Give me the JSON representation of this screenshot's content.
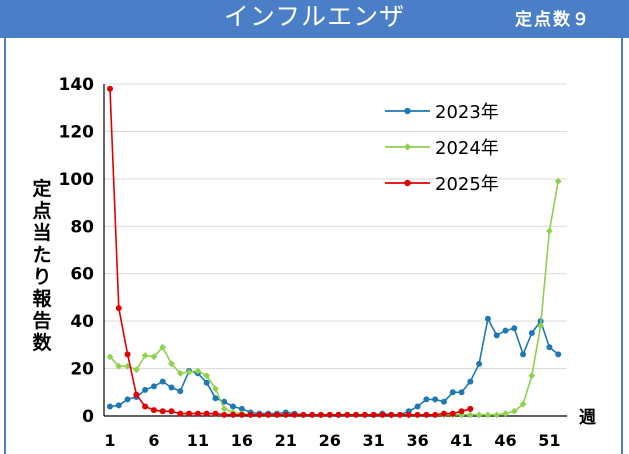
{
  "header": {
    "title": "インフルエンザ",
    "subtitle": "定点数９"
  },
  "colors": {
    "banner": "#4a7ec6",
    "series_2023": "#1f77b4",
    "series_2024": "#8fd14f",
    "series_2025": "#e00000"
  },
  "chart_data": {
    "type": "line",
    "ylabel": "定点当たり報告数",
    "xlabel": "週",
    "ylim": [
      0,
      140
    ],
    "yticks": [
      0,
      20,
      40,
      60,
      80,
      100,
      120,
      140
    ],
    "xlim": [
      1,
      53
    ],
    "xticks": [
      1,
      6,
      11,
      16,
      21,
      26,
      31,
      36,
      41,
      46,
      51
    ],
    "grid": true,
    "legend_position": "top-right",
    "series": [
      {
        "name": "2023年",
        "color": "#1f77b4",
        "marker": "circle",
        "x": [
          1,
          2,
          3,
          4,
          5,
          6,
          7,
          8,
          9,
          10,
          11,
          12,
          13,
          14,
          15,
          16,
          17,
          18,
          19,
          20,
          21,
          22,
          23,
          24,
          25,
          26,
          27,
          28,
          29,
          30,
          31,
          32,
          33,
          34,
          35,
          36,
          37,
          38,
          39,
          40,
          41,
          42,
          43,
          44,
          45,
          46,
          47,
          48,
          49,
          50,
          51,
          52
        ],
        "values": [
          4,
          4.5,
          7,
          8,
          11,
          12.5,
          14.5,
          12,
          10.5,
          19,
          18,
          14,
          7.5,
          6,
          4,
          3,
          1.5,
          1,
          1,
          1,
          1.5,
          1,
          0.5,
          0.5,
          0.5,
          0.5,
          0.5,
          0.5,
          0.5,
          0.5,
          0.5,
          1,
          0.5,
          0.5,
          2,
          4,
          7,
          7,
          6,
          10,
          10,
          14.5,
          22,
          41,
          34,
          36,
          37,
          26,
          35,
          40,
          29,
          26
        ]
      },
      {
        "name": "2024年",
        "color": "#8fd14f",
        "marker": "diamond",
        "x": [
          1,
          2,
          3,
          4,
          5,
          6,
          7,
          8,
          9,
          10,
          11,
          12,
          13,
          14,
          15,
          16,
          17,
          18,
          19,
          20,
          21,
          22,
          23,
          24,
          25,
          26,
          27,
          28,
          29,
          30,
          31,
          32,
          33,
          34,
          35,
          36,
          37,
          38,
          39,
          40,
          41,
          42,
          43,
          44,
          45,
          46,
          47,
          48,
          49,
          50,
          51,
          52
        ],
        "values": [
          25,
          21,
          21,
          19.5,
          25.5,
          25,
          29,
          22,
          18,
          18.5,
          19,
          17,
          11.5,
          3,
          1.5,
          1,
          0.5,
          0.5,
          0.5,
          0.5,
          0.5,
          0.5,
          0.5,
          0.5,
          0.5,
          0.5,
          0.5,
          0.5,
          0.5,
          0.5,
          0.5,
          0.5,
          0.5,
          0.5,
          0.5,
          0.5,
          0.5,
          0.5,
          0.5,
          0.5,
          0.5,
          0.5,
          0.5,
          0.5,
          0.5,
          1,
          2,
          5,
          17,
          38,
          78,
          99
        ]
      },
      {
        "name": "2025年",
        "color": "#e00000",
        "marker": "circle",
        "x": [
          1,
          2,
          3,
          4,
          5,
          6,
          7,
          8,
          9,
          10,
          11,
          12,
          13,
          14,
          15,
          16,
          17,
          18,
          19,
          20,
          21,
          22,
          23,
          24,
          25,
          26,
          27,
          28,
          29,
          30,
          31,
          32,
          33,
          34,
          35,
          36,
          37,
          38,
          39,
          40,
          41,
          42
        ],
        "values": [
          138,
          45.5,
          26,
          9,
          4,
          2.5,
          2,
          2,
          1,
          1,
          1,
          1,
          1,
          0.5,
          0.5,
          0.5,
          0.5,
          0.5,
          0.5,
          0.5,
          0.5,
          0.5,
          0.5,
          0.5,
          0.5,
          0.5,
          0.5,
          0.5,
          0.5,
          0.5,
          0.5,
          0.5,
          0.5,
          0.5,
          0.5,
          0.5,
          0.5,
          0.5,
          1,
          1,
          2,
          3
        ]
      }
    ]
  }
}
